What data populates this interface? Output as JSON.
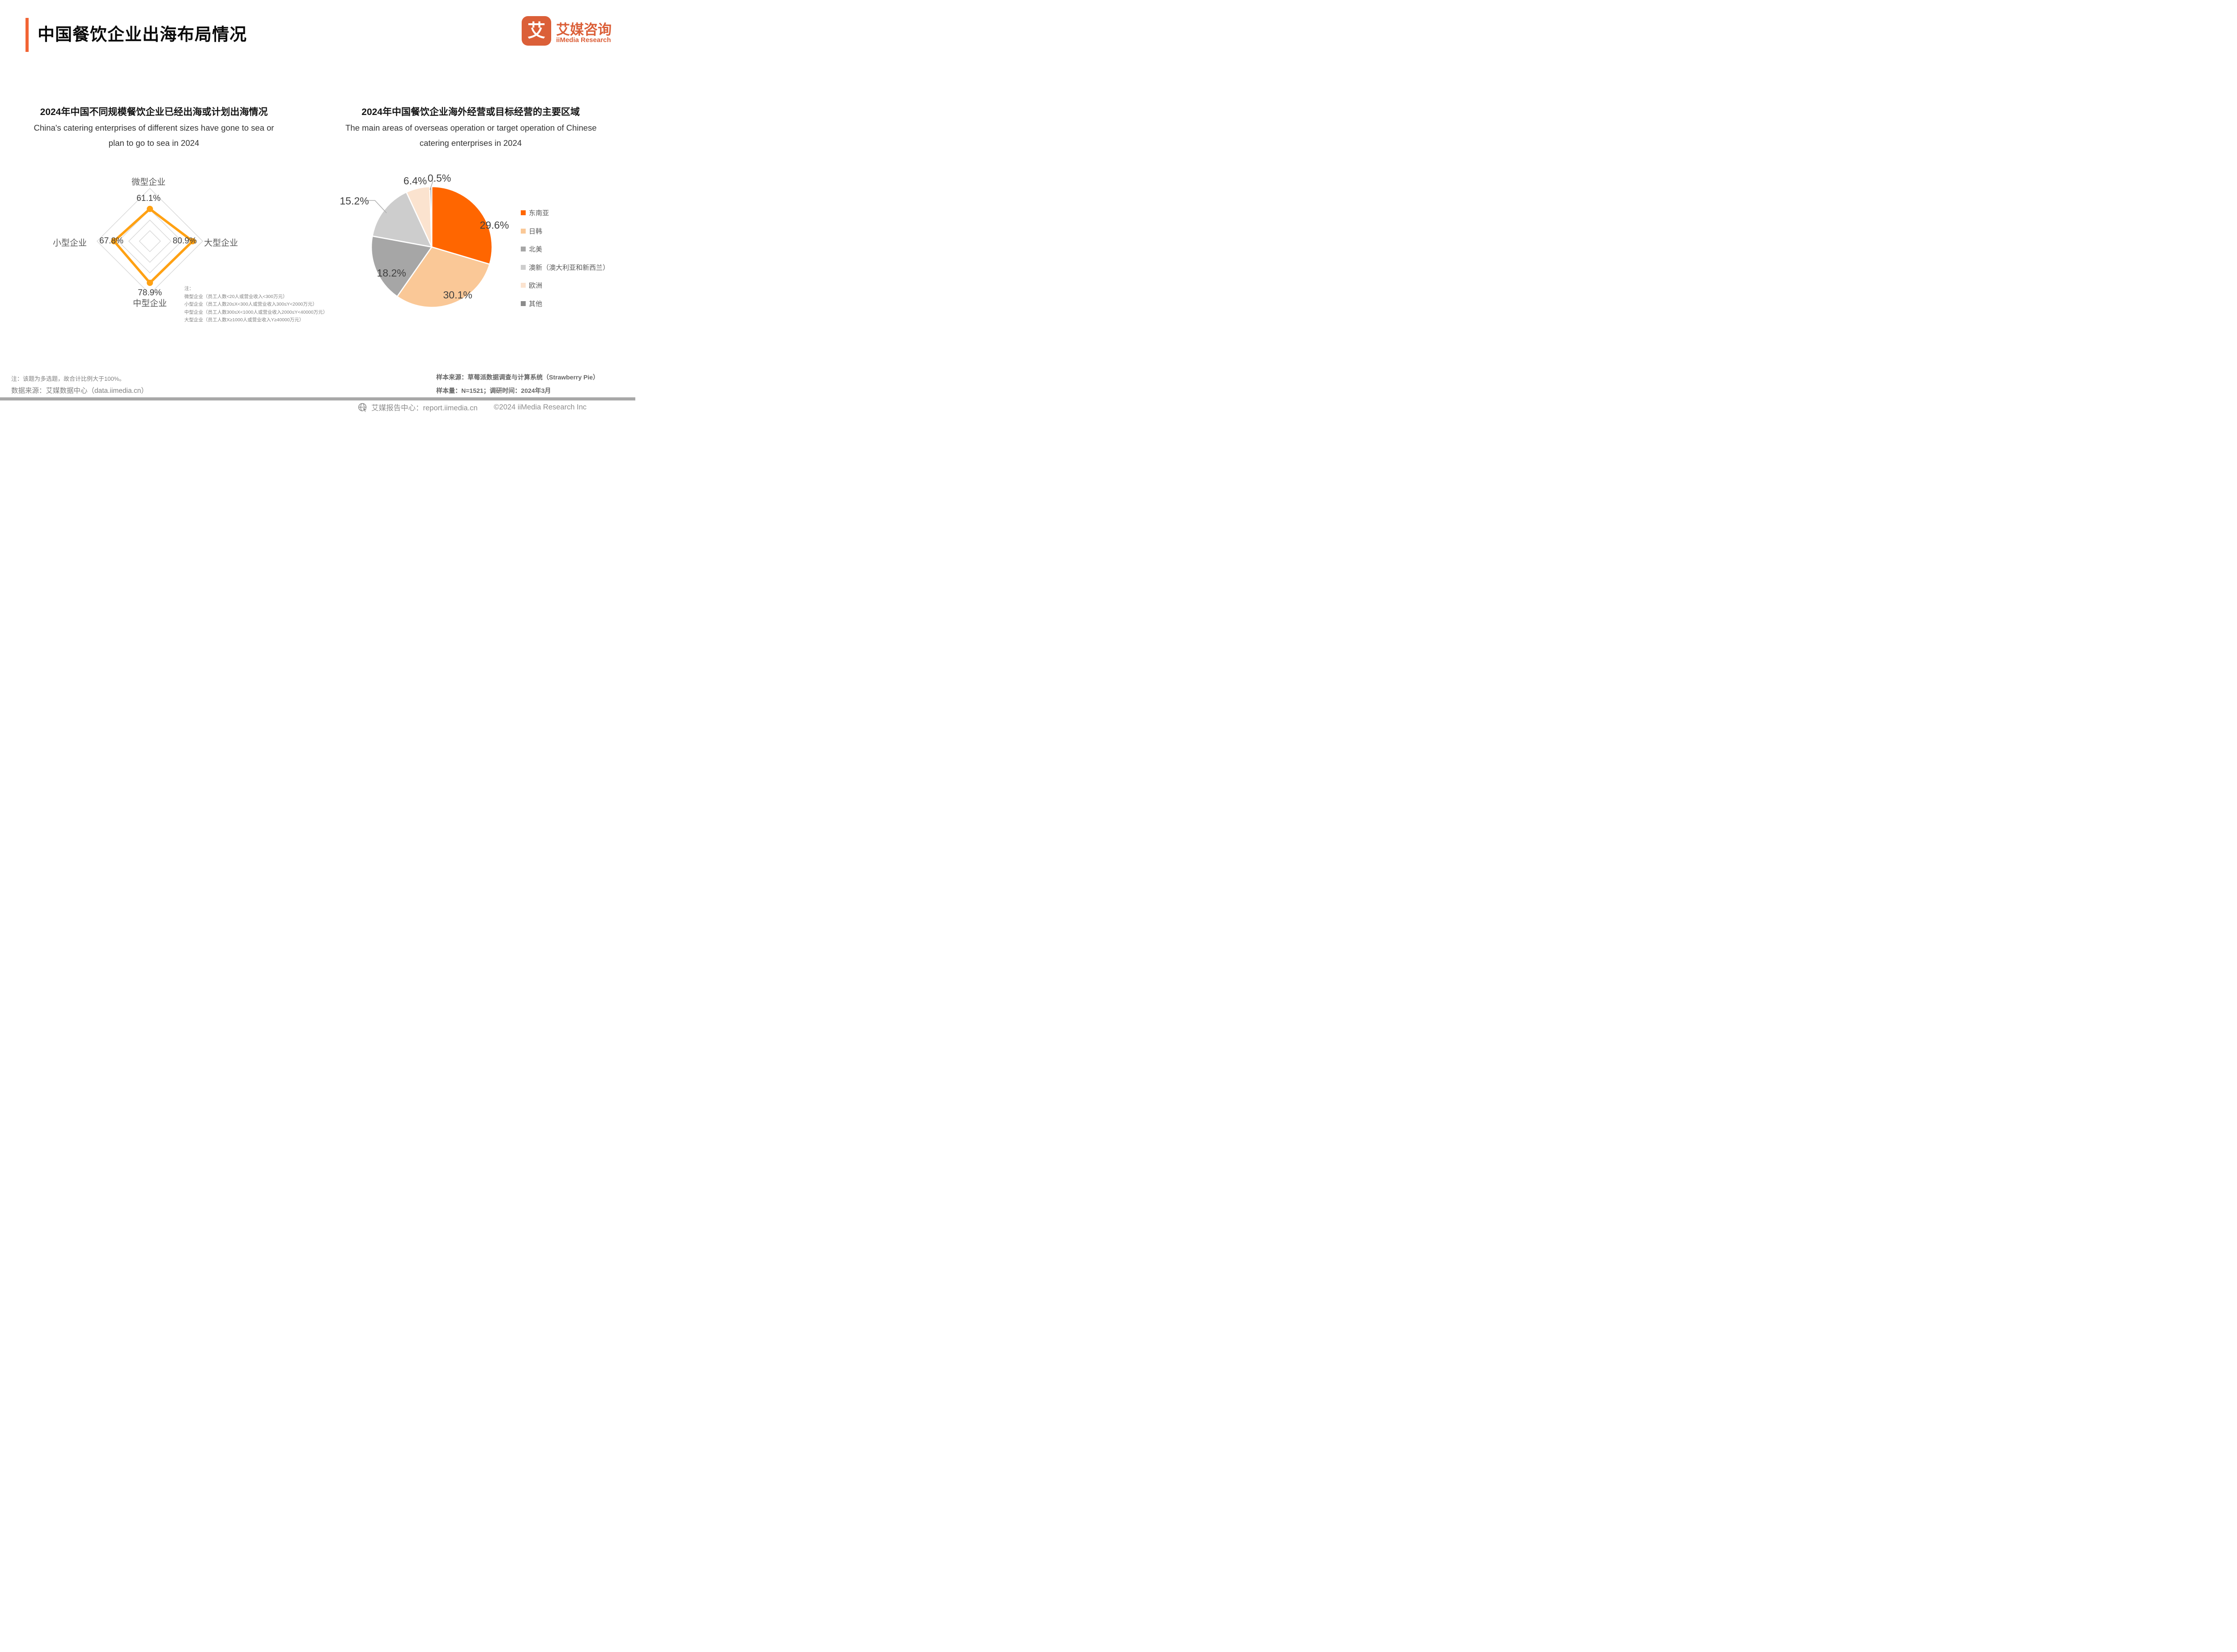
{
  "header": {
    "title": "中国餐饮企业出海布局情况",
    "accent_color": "#F26434",
    "logo": {
      "glyph": "艾",
      "brand_cn": "艾媒咨询",
      "brand_en": "iiMedia Research",
      "color": "#DB5F38"
    }
  },
  "left_chart": {
    "title_cn": "2024年中国不同规模餐饮企业已经出海或计划出海情况",
    "title_en_line1": "China's catering enterprises of different sizes have gone to sea or",
    "title_en_line2": "plan to go to sea in 2024",
    "note_lines": [
      "注：",
      "微型企业（员工人数<20人或营业收入<300万元）",
      "小型企业（员工人数20≤X<300人或营业收入300≤Y<2000万元）",
      "中型企业（员工人数300≤X<1000人或营业收入2000≤Y<40000万元）",
      "大型企业（员工人数X≥1000人或营业收入Y≥40000万元）"
    ]
  },
  "right_chart": {
    "title_cn": "2024年中国餐饮企业海外经营或目标经营的主要区域",
    "title_en_line1": "The main areas of overseas operation or target operation of Chinese",
    "title_en_line2": "catering enterprises in 2024"
  },
  "chart_data": [
    {
      "type": "radar",
      "title": "2024年中国不同规模餐饮企业已经出海或计划出海情况",
      "max": 100,
      "grid_rings": [
        1,
        0.6,
        0.4,
        0.2
      ],
      "grid_color": "#D9D9D9",
      "line_color": "#FFA113",
      "axes": [
        {
          "label": "微型企业",
          "value": 61.1,
          "value_label": "61.1%",
          "position": "top"
        },
        {
          "label": "大型企业",
          "value": 80.9,
          "value_label": "80.9%",
          "position": "right"
        },
        {
          "label": "中型企业",
          "value": 78.9,
          "value_label": "78.9%",
          "position": "bottom"
        },
        {
          "label": "小型企业",
          "value": 67.8,
          "value_label": "67.8%",
          "position": "left"
        }
      ]
    },
    {
      "type": "pie",
      "title": "2024年中国餐饮企业海外经营或目标经营的主要区域",
      "start_angle": "top",
      "direction": "clockwise",
      "legend_position": "right",
      "slices": [
        {
          "label": "东南亚",
          "value": 29.6,
          "pct_label": "29.6%",
          "color": "#FF6600"
        },
        {
          "label": "日韩",
          "value": 30.1,
          "pct_label": "30.1%",
          "color": "#FAC897"
        },
        {
          "label": "北美",
          "value": 18.2,
          "pct_label": "18.2%",
          "color": "#A6A6A6"
        },
        {
          "label": "澳新（澳大利亚和新西兰）",
          "value": 15.2,
          "pct_label": "15.2%",
          "color": "#CDCDCD"
        },
        {
          "label": "欧洲",
          "value": 6.4,
          "pct_label": "6.4%",
          "color": "#FBE3CF"
        },
        {
          "label": "其他",
          "value": 0.5,
          "pct_label": "0.5%",
          "color": "#8C8C8C"
        }
      ]
    }
  ],
  "footnotes": {
    "left_line1": "注：该题为多选题，故合计比例大于100%。",
    "left_line2": "数据来源：艾媒数据中心（data.iimedia.cn）",
    "right_line1": "样本来源：草莓派数据调查与计算系统（Strawberry Pie）",
    "right_line2": "样本量：N=1521；调研时间：2024年3月"
  },
  "footer": {
    "report_center": "艾媒报告中心：report.iimedia.cn",
    "copyright": "©2024  iiMedia Research  Inc"
  }
}
